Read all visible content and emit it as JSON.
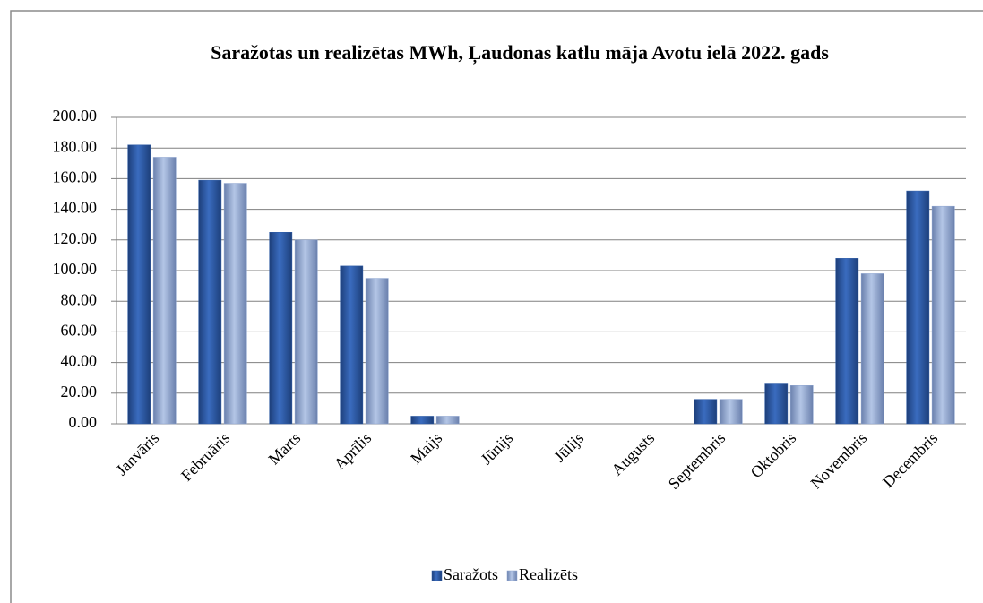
{
  "chart_data": {
    "type": "bar",
    "title": "Saražotas un realizētas MWh, Ļaudonas katlu māja Avotu ielā 2022. gads",
    "categories": [
      "Janvāris",
      "Februāris",
      "Marts",
      "Aprīlis",
      "Maijs",
      "Jūnijs",
      "Jūlijs",
      "Augusts",
      "Septembris",
      "Oktobris",
      "Novembris",
      "Decembris"
    ],
    "series": [
      {
        "name": "Saražots",
        "color": "#2e5ca6",
        "values": [
          182,
          159,
          125,
          103,
          5,
          0,
          0,
          0,
          16,
          26,
          108,
          152
        ]
      },
      {
        "name": "Realizēts",
        "color": "#8ea5d0",
        "values": [
          174,
          157,
          120,
          95,
          5,
          0,
          0,
          0,
          16,
          25,
          98,
          142
        ]
      }
    ],
    "ylim": [
      0,
      200
    ],
    "yticks": [
      {
        "value": 0,
        "label": "0.00"
      },
      {
        "value": 20,
        "label": "20.00"
      },
      {
        "value": 40,
        "label": "40.00"
      },
      {
        "value": 60,
        "label": "60.00"
      },
      {
        "value": 80,
        "label": "80.00"
      },
      {
        "value": 100,
        "label": "100.00"
      },
      {
        "value": 120,
        "label": "120.00"
      },
      {
        "value": 140,
        "label": "140.00"
      },
      {
        "value": 160,
        "label": "160.00"
      },
      {
        "value": 180,
        "label": "180.00"
      },
      {
        "value": 200,
        "label": "200.00"
      }
    ],
    "grid": true,
    "legend": "bottom"
  }
}
